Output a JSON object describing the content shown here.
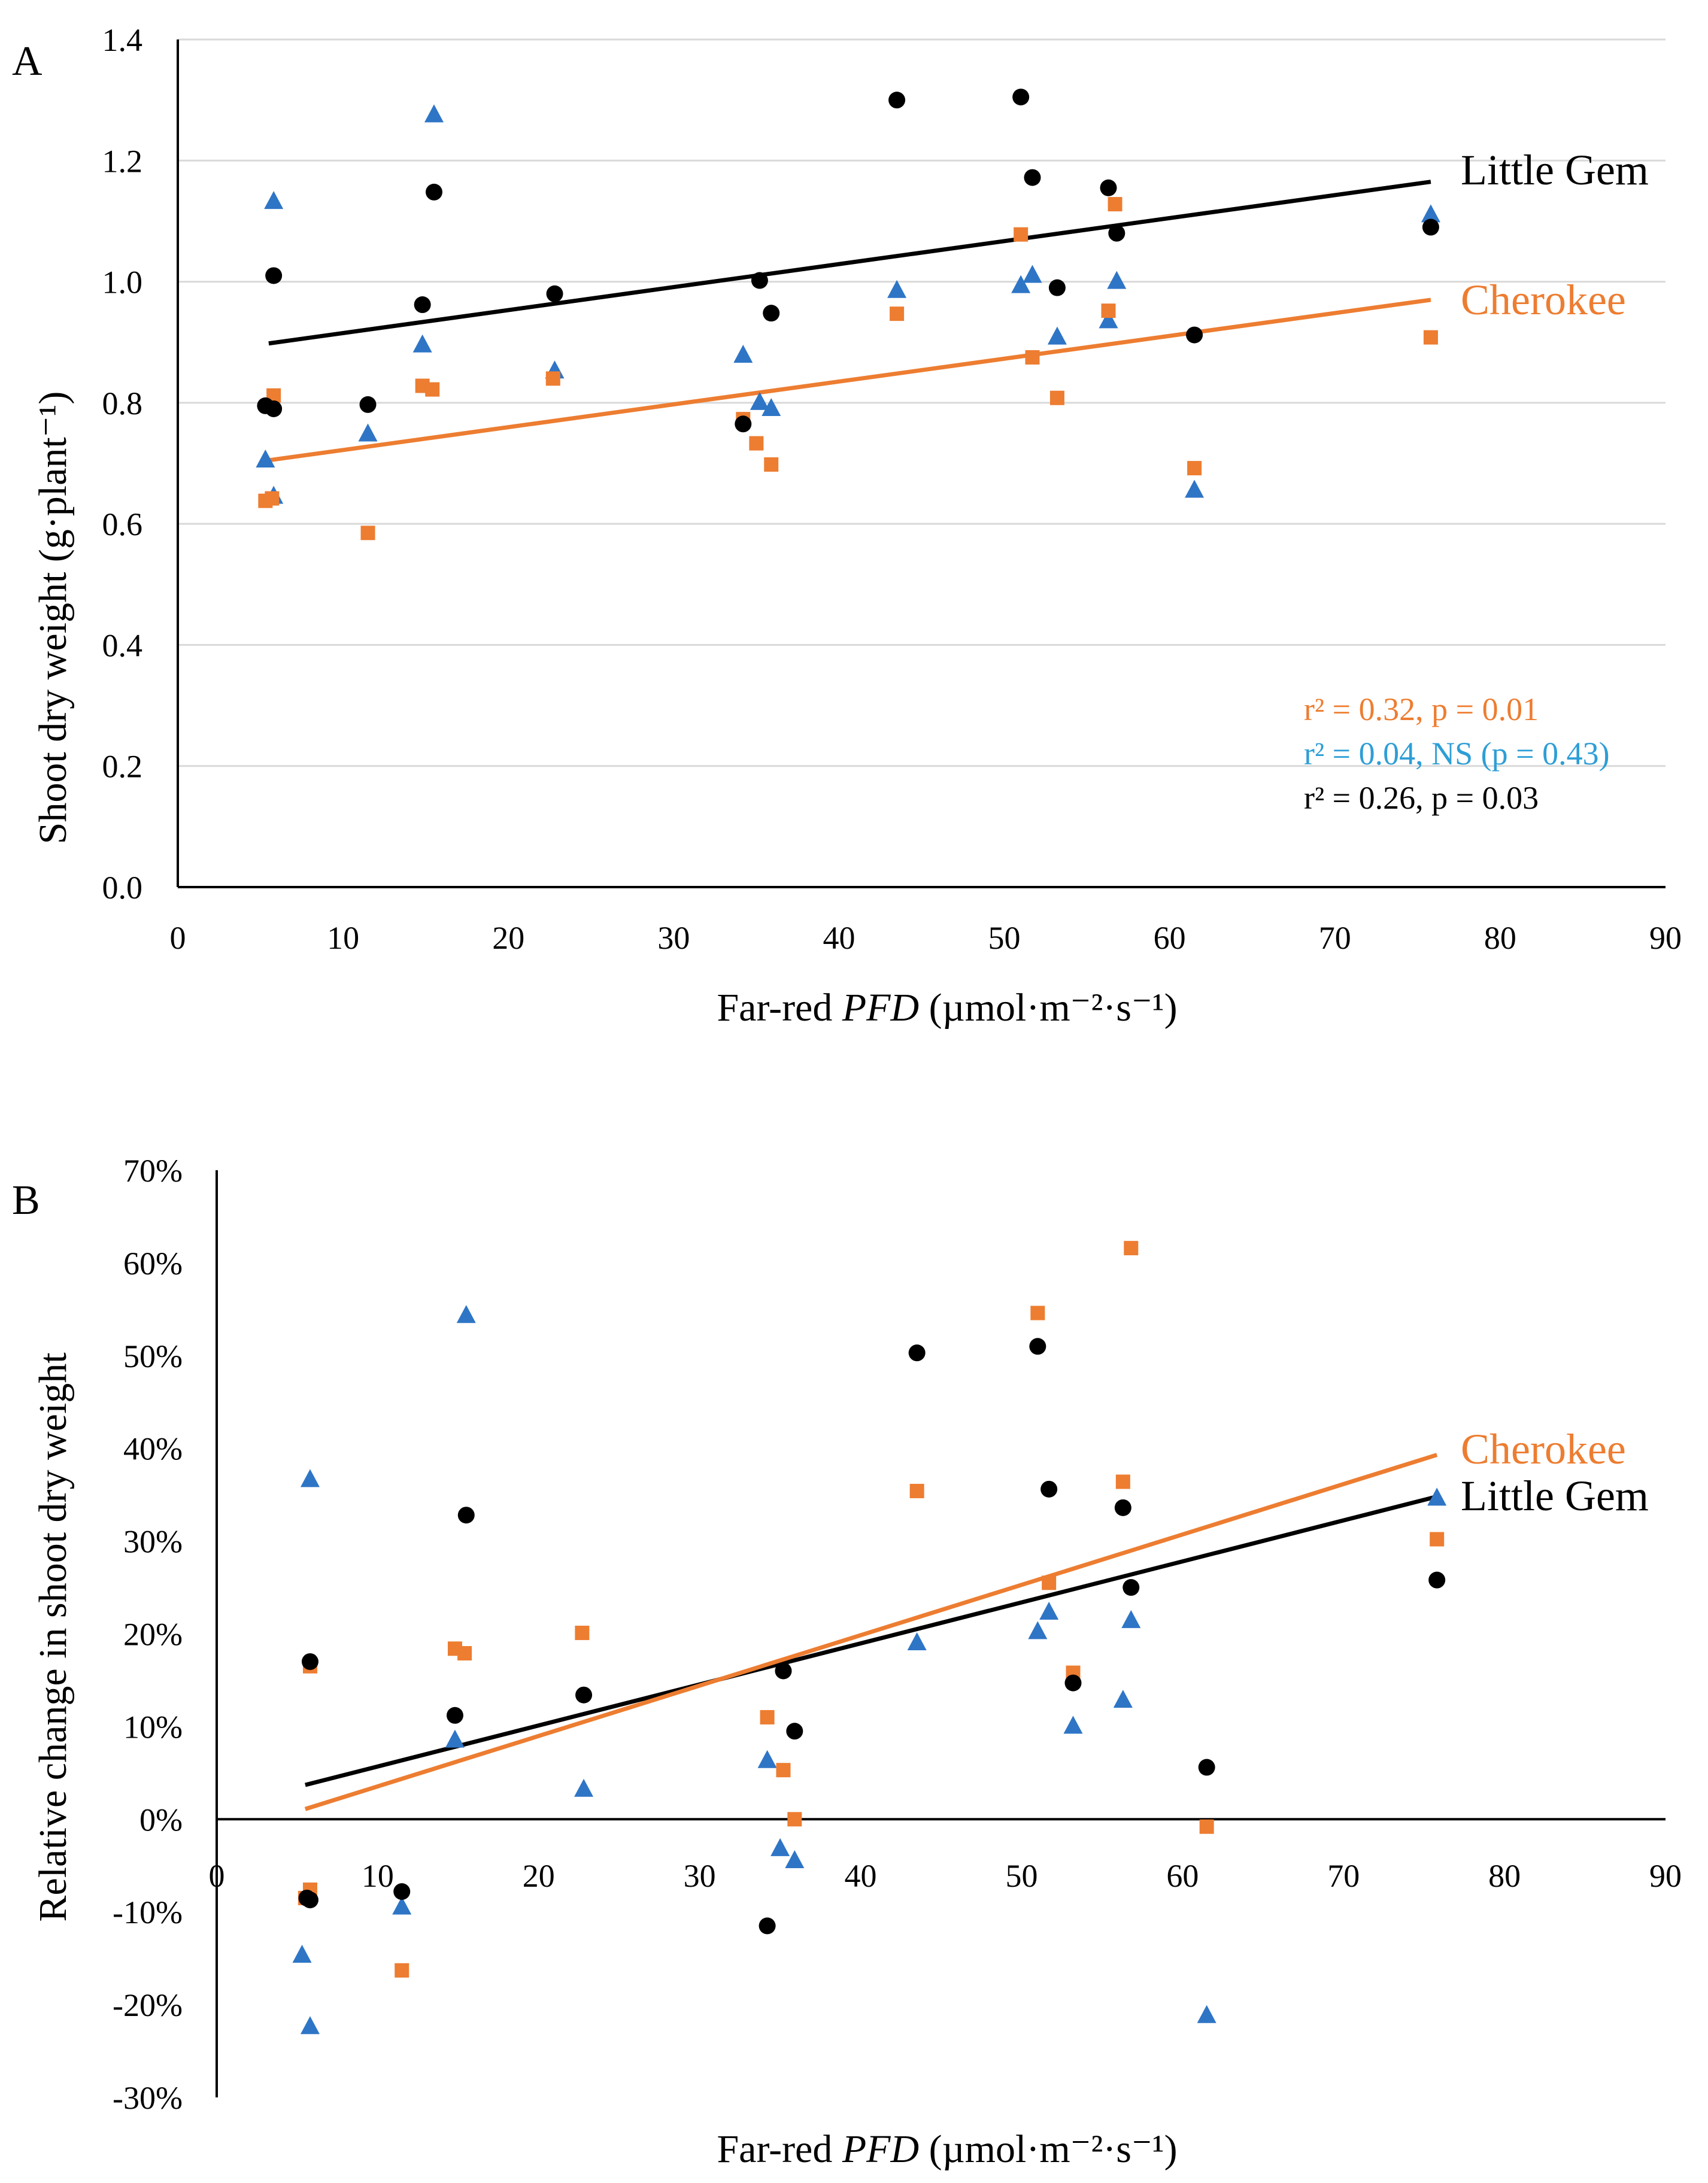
{
  "colors": {
    "little_gem": "#000000",
    "cherokee": "#ED7D31",
    "blue": "#2E75C6",
    "grid": "#D9D9D9",
    "axis": "#000000"
  },
  "chart_data": [
    {
      "type": "scatter",
      "panel": "A",
      "xlabel_pre": "Far-red ",
      "xlabel_italic": "PFD",
      "xlabel_units": " (µmol·m⁻²·s⁻¹)",
      "ylabel": "Shoot dry weight (g·plant⁻¹)",
      "xlim": [
        0,
        90
      ],
      "ylim": [
        0,
        1.4
      ],
      "xticks": [
        0,
        10,
        20,
        30,
        40,
        50,
        60,
        70,
        80,
        90
      ],
      "yticks": [
        0,
        0.2,
        0.4,
        0.6,
        0.8,
        1.0,
        1.2,
        1.4
      ],
      "ytick_labels": [
        "0.0",
        "0.2",
        "0.4",
        "0.6",
        "0.8",
        "1.0",
        "1.2",
        "1.4"
      ],
      "grid": true,
      "series": [
        {
          "name": "Little Gem",
          "marker": "circle",
          "color": "#000000",
          "points": [
            [
              5.3,
              0.795
            ],
            [
              5.8,
              0.79
            ],
            [
              5.8,
              1.01
            ],
            [
              11.5,
              0.797
            ],
            [
              14.8,
              0.962
            ],
            [
              15.5,
              1.148
            ],
            [
              22.8,
              0.98
            ],
            [
              34.2,
              0.765
            ],
            [
              35.2,
              1.002
            ],
            [
              35.9,
              0.948
            ],
            [
              43.5,
              1.3
            ],
            [
              51.0,
              1.305
            ],
            [
              51.7,
              1.172
            ],
            [
              53.2,
              0.99
            ],
            [
              56.3,
              1.155
            ],
            [
              56.8,
              1.08
            ],
            [
              61.5,
              0.912
            ],
            [
              75.8,
              1.09
            ]
          ],
          "trend": [
            [
              5.5,
              0.898
            ],
            [
              75.8,
              1.165
            ]
          ]
        },
        {
          "name": "Cherokee",
          "marker": "square",
          "color": "#ED7D31",
          "points": [
            [
              5.3,
              0.638
            ],
            [
              5.7,
              0.642
            ],
            [
              5.8,
              0.812
            ],
            [
              11.5,
              0.585
            ],
            [
              14.8,
              0.828
            ],
            [
              15.4,
              0.822
            ],
            [
              22.7,
              0.84
            ],
            [
              34.2,
              0.773
            ],
            [
              35.0,
              0.733
            ],
            [
              35.9,
              0.698
            ],
            [
              43.5,
              0.947
            ],
            [
              51.0,
              1.078
            ],
            [
              51.7,
              0.875
            ],
            [
              53.2,
              0.808
            ],
            [
              56.3,
              0.952
            ],
            [
              56.7,
              1.128
            ],
            [
              61.5,
              0.692
            ],
            [
              75.8,
              0.908
            ]
          ],
          "trend": [
            [
              5.5,
              0.705
            ],
            [
              75.8,
              0.97
            ]
          ]
        },
        {
          "name": "",
          "marker": "triangle",
          "color": "#2E75C6",
          "points": [
            [
              5.3,
              0.705
            ],
            [
              5.8,
              0.645
            ],
            [
              5.8,
              1.132
            ],
            [
              11.5,
              0.748
            ],
            [
              14.8,
              0.895
            ],
            [
              15.5,
              1.275
            ],
            [
              22.8,
              0.852
            ],
            [
              34.2,
              0.878
            ],
            [
              35.2,
              0.8
            ],
            [
              35.9,
              0.79
            ],
            [
              43.5,
              0.985
            ],
            [
              51.0,
              0.993
            ],
            [
              51.7,
              1.01
            ],
            [
              53.2,
              0.908
            ],
            [
              56.3,
              0.935
            ],
            [
              56.8,
              1.0
            ],
            [
              61.5,
              0.655
            ],
            [
              75.8,
              1.11
            ]
          ]
        }
      ],
      "series_labels": [
        {
          "text": "Little Gem",
          "color": "#000000"
        },
        {
          "text": "Cherokee",
          "color": "#ED7D31"
        }
      ],
      "stats": [
        {
          "text": "r² = 0.32, p = 0.01",
          "color": "#ED7D31"
        },
        {
          "text": "r² = 0.04, NS (p = 0.43)",
          "color": "#2E9ED6"
        },
        {
          "text": "r² = 0.26, p = 0.03",
          "color": "#000000"
        }
      ]
    },
    {
      "type": "scatter",
      "panel": "B",
      "xlabel_pre": "Far-red ",
      "xlabel_italic": "PFD",
      "xlabel_units": " (µmol·m⁻²·s⁻¹)",
      "ylabel": "Relative change in shoot dry weight",
      "xlim": [
        0,
        90
      ],
      "ylim": [
        -30,
        70
      ],
      "xticks": [
        0,
        10,
        20,
        30,
        40,
        50,
        60,
        70,
        80,
        90
      ],
      "yticks": [
        -30,
        -20,
        -10,
        0,
        10,
        20,
        30,
        40,
        50,
        60,
        70
      ],
      "ytick_labels": [
        "-30%",
        "-20%",
        "-10%",
        "0%",
        "10%",
        "20%",
        "30%",
        "40%",
        "50%",
        "60%",
        "70%"
      ],
      "grid": false,
      "series": [
        {
          "name": "Little Gem",
          "marker": "circle",
          "color": "#000000",
          "points": [
            [
              5.6,
              -8.5
            ],
            [
              5.8,
              -8.7
            ],
            [
              5.8,
              17.0
            ],
            [
              11.5,
              -7.8
            ],
            [
              14.8,
              11.2
            ],
            [
              15.5,
              32.8
            ],
            [
              22.8,
              13.4
            ],
            [
              34.2,
              -11.5
            ],
            [
              35.2,
              16.0
            ],
            [
              35.9,
              9.5
            ],
            [
              43.5,
              50.3
            ],
            [
              51.0,
              51.0
            ],
            [
              51.7,
              35.6
            ],
            [
              53.2,
              14.7
            ],
            [
              56.3,
              33.6
            ],
            [
              56.8,
              25.0
            ],
            [
              61.5,
              5.6
            ],
            [
              75.8,
              25.8
            ]
          ],
          "trend": [
            [
              5.5,
              3.7
            ],
            [
              75.8,
              34.8
            ]
          ]
        },
        {
          "name": "Cherokee",
          "marker": "square",
          "color": "#ED7D31",
          "points": [
            [
              5.5,
              -8.5
            ],
            [
              5.8,
              -7.6
            ],
            [
              5.8,
              16.5
            ],
            [
              11.5,
              -16.3
            ],
            [
              14.8,
              18.4
            ],
            [
              15.4,
              17.9
            ],
            [
              22.7,
              20.1
            ],
            [
              34.2,
              11.0
            ],
            [
              35.2,
              5.3
            ],
            [
              35.9,
              0.0
            ],
            [
              43.5,
              35.4
            ],
            [
              51.0,
              54.6
            ],
            [
              51.7,
              25.5
            ],
            [
              53.2,
              15.8
            ],
            [
              56.3,
              36.4
            ],
            [
              56.8,
              61.6
            ],
            [
              61.5,
              -0.8
            ],
            [
              75.8,
              30.2
            ]
          ],
          "trend": [
            [
              5.5,
              1.1
            ],
            [
              75.8,
              39.3
            ]
          ]
        },
        {
          "name": "",
          "marker": "triangle",
          "color": "#2E75C6",
          "points": [
            [
              5.3,
              -14.7
            ],
            [
              5.8,
              -22.4
            ],
            [
              5.8,
              36.6
            ],
            [
              11.5,
              -9.5
            ],
            [
              14.8,
              8.5
            ],
            [
              15.5,
              54.3
            ],
            [
              22.8,
              3.2
            ],
            [
              34.2,
              6.3
            ],
            [
              35.0,
              -3.2
            ],
            [
              35.9,
              -4.5
            ],
            [
              43.5,
              19.0
            ],
            [
              51.0,
              20.2
            ],
            [
              51.7,
              22.3
            ],
            [
              53.2,
              10.0
            ],
            [
              56.3,
              12.8
            ],
            [
              56.8,
              21.4
            ],
            [
              61.5,
              -21.2
            ],
            [
              75.8,
              34.6
            ]
          ]
        }
      ],
      "series_labels": [
        {
          "text": "Cherokee",
          "color": "#ED7D31"
        },
        {
          "text": "Little Gem",
          "color": "#000000"
        }
      ]
    }
  ]
}
